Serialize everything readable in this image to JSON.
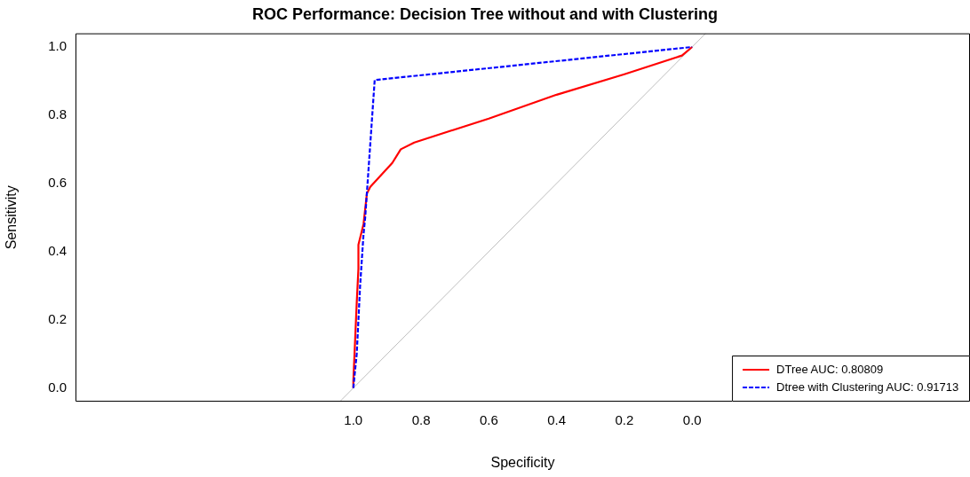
{
  "chart_data": {
    "type": "line",
    "title": "ROC Performance: Decision Tree without and with Clustering",
    "xlabel": "Specificity",
    "ylabel": "Sensitivity",
    "xlim": [
      1.82,
      -0.82
    ],
    "ylim": [
      -0.04,
      1.04
    ],
    "xticks": [
      {
        "value": 1,
        "label": "1.0"
      },
      {
        "value": 0.8,
        "label": "0.8"
      },
      {
        "value": 0.6,
        "label": "0.6"
      },
      {
        "value": 0.4,
        "label": "0.4"
      },
      {
        "value": 0.2,
        "label": "0.2"
      },
      {
        "value": 0,
        "label": "0.0"
      }
    ],
    "yticks": [
      {
        "value": 0,
        "label": "0.0"
      },
      {
        "value": 0.2,
        "label": "0.2"
      },
      {
        "value": 0.4,
        "label": "0.4"
      },
      {
        "value": 0.6,
        "label": "0.6"
      },
      {
        "value": 0.8,
        "label": "0.8"
      },
      {
        "value": 1,
        "label": "1.0"
      }
    ],
    "grid": false,
    "legend": "bottom right",
    "marker": "none",
    "series": [
      {
        "color": "#bebebe",
        "line_style": "solid",
        "x": [
          1.04,
          -0.04
        ],
        "values": [
          -0.04,
          1.04
        ]
      },
      {
        "name": "DTree AUC: 0.80809",
        "color": "#ff0000",
        "line_style": "solid",
        "x": [
          1.0,
          1.0,
          0.99,
          0.985,
          0.985,
          0.97,
          0.96,
          0.95,
          0.885,
          0.86,
          0.82,
          0.6,
          0.4,
          0.2,
          0.03,
          0.0
        ],
        "values": [
          0.0,
          0.02,
          0.25,
          0.35,
          0.42,
          0.48,
          0.57,
          0.59,
          0.66,
          0.7,
          0.72,
          0.79,
          0.86,
          0.92,
          0.975,
          1.0
        ]
      },
      {
        "name": "Dtree with Clustering AUC: 0.91713",
        "color": "#0000ff",
        "line_style": "dashed",
        "x": [
          1.0,
          0.99,
          0.98,
          0.97,
          0.965,
          0.937,
          0.0
        ],
        "values": [
          0.0,
          0.1,
          0.3,
          0.45,
          0.5,
          0.903,
          1.0
        ]
      }
    ]
  }
}
